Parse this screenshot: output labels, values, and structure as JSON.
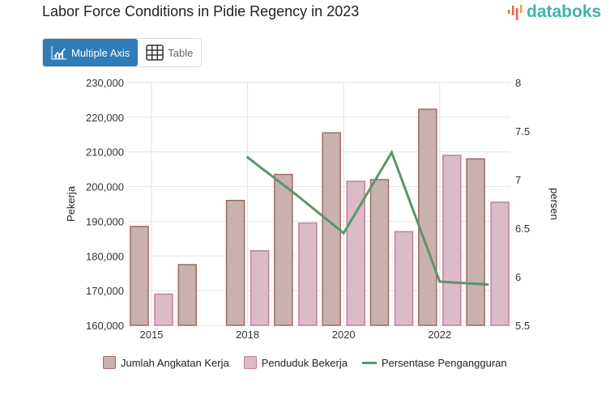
{
  "title": "Labor Force Conditions in Pidie Regency in 2023",
  "logo": {
    "text": "databoks"
  },
  "tabs": [
    {
      "label": "Multiple Axis",
      "icon": "chart-icon",
      "active": true
    },
    {
      "label": "Table",
      "icon": "table-icon",
      "active": false
    }
  ],
  "colors": {
    "brown": "#c9b1ad",
    "brown_border": "#a06a66",
    "pink": "#dcbac8",
    "pink_border": "#c4809c",
    "line": "#5a9669",
    "accent": "#2f7cb8"
  },
  "chart_data": {
    "type": "bar+line",
    "title": "Labor Force Conditions in Pidie Regency in 2023",
    "categories": [
      "2015",
      "",
      "2018",
      "",
      "2020",
      "",
      "2022",
      ""
    ],
    "x_tick_labels": [
      "2015",
      "2018",
      "2020",
      "2022"
    ],
    "ylabel": "Pekerja",
    "y2label": "persen",
    "ylim": [
      160000,
      230000
    ],
    "y2lim": [
      5.5,
      8
    ],
    "y_ticks": [
      "160,000",
      "170,000",
      "180,000",
      "190,000",
      "200,000",
      "210,000",
      "220,000",
      "230,000"
    ],
    "y2_ticks": [
      "5.5",
      "6",
      "6.5",
      "7",
      "7.5",
      "8"
    ],
    "series": [
      {
        "name": "Jumlah Angkatan Kerja",
        "type": "bar",
        "axis": "left",
        "values": [
          188500,
          177500,
          196000,
          203500,
          215500,
          202000,
          222300,
          208000
        ]
      },
      {
        "name": "Penduduk Bekerja",
        "type": "bar",
        "axis": "left",
        "values": [
          169000,
          null,
          181500,
          189500,
          201500,
          187000,
          209000,
          195500
        ]
      },
      {
        "name": "Persentase Pengangguran",
        "type": "line",
        "axis": "right",
        "values": [
          null,
          null,
          7.23,
          6.85,
          6.45,
          7.28,
          5.95,
          5.92
        ]
      }
    ],
    "grid": true,
    "legend": "bottom"
  }
}
